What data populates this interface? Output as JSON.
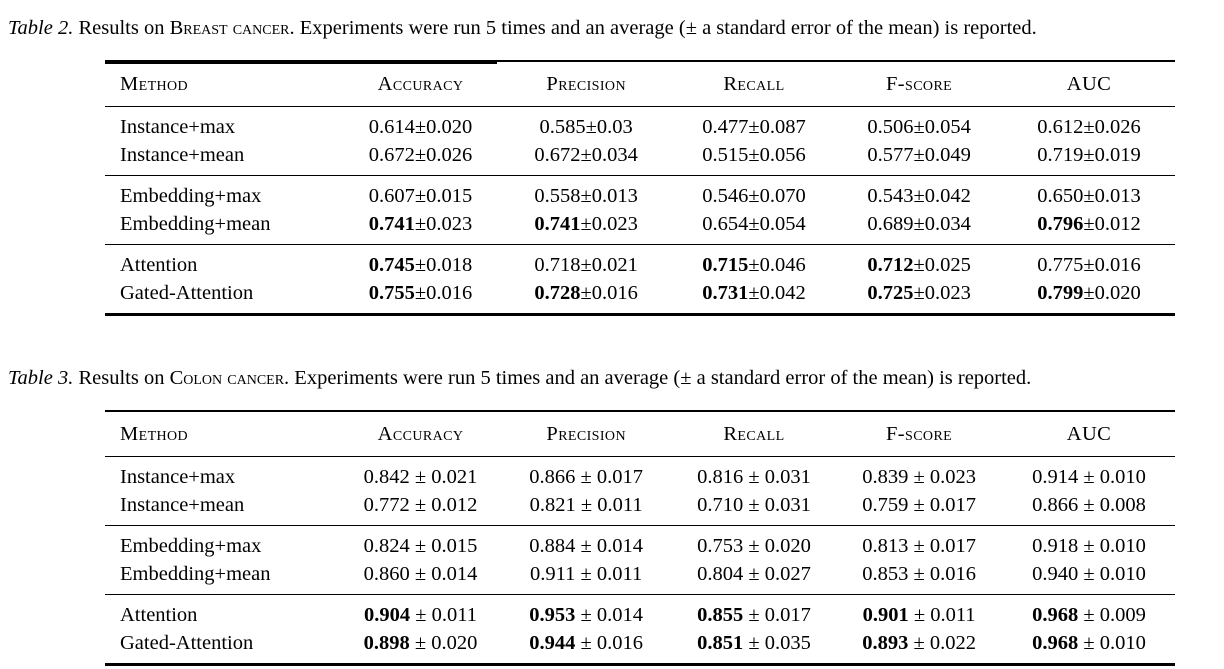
{
  "page": {
    "background": "#ffffff",
    "text_color": "#000000"
  },
  "tables": [
    {
      "id": "breast-cancer-results",
      "caption": {
        "label": "Table 2.",
        "before": " Results on ",
        "dataset": "Breast cancer",
        "after": ". Experiments were run 5 times and an average (± a standard error of the mean) is reported."
      },
      "columns": [
        "Method",
        "Accuracy",
        "Precision",
        "Recall",
        "F-score",
        "AUC"
      ],
      "pm": "±",
      "pm_spaced": false,
      "groups": [
        {
          "rows": [
            {
              "method": "Instance+max",
              "cells": [
                [
                  "0.614",
                  "0.020",
                  0
                ],
                [
                  "0.585",
                  "0.03",
                  0
                ],
                [
                  "0.477",
                  "0.087",
                  0
                ],
                [
                  "0.506",
                  "0.054",
                  0
                ],
                [
                  "0.612",
                  "0.026",
                  0
                ]
              ]
            },
            {
              "method": "Instance+mean",
              "cells": [
                [
                  "0.672",
                  "0.026",
                  0
                ],
                [
                  "0.672",
                  "0.034",
                  0
                ],
                [
                  "0.515",
                  "0.056",
                  0
                ],
                [
                  "0.577",
                  "0.049",
                  0
                ],
                [
                  "0.719",
                  "0.019",
                  0
                ]
              ]
            }
          ]
        },
        {
          "rows": [
            {
              "method": "Embedding+max",
              "cells": [
                [
                  "0.607",
                  "0.015",
                  0
                ],
                [
                  "0.558",
                  "0.013",
                  0
                ],
                [
                  "0.546",
                  "0.070",
                  0
                ],
                [
                  "0.543",
                  "0.042",
                  0
                ],
                [
                  "0.650",
                  "0.013",
                  0
                ]
              ]
            },
            {
              "method": "Embedding+mean",
              "cells": [
                [
                  "0.741",
                  "0.023",
                  1
                ],
                [
                  "0.741",
                  "0.023",
                  1
                ],
                [
                  "0.654",
                  "0.054",
                  0
                ],
                [
                  "0.689",
                  "0.034",
                  0
                ],
                [
                  "0.796",
                  "0.012",
                  1
                ]
              ]
            }
          ]
        },
        {
          "rows": [
            {
              "method": "Attention",
              "cells": [
                [
                  "0.745",
                  "0.018",
                  1
                ],
                [
                  "0.718",
                  "0.021",
                  0
                ],
                [
                  "0.715",
                  "0.046",
                  1
                ],
                [
                  "0.712",
                  "0.025",
                  1
                ],
                [
                  "0.775",
                  "0.016",
                  0
                ]
              ]
            },
            {
              "method": "Gated-Attention",
              "cells": [
                [
                  "0.755",
                  "0.016",
                  1
                ],
                [
                  "0.728",
                  "0.016",
                  1
                ],
                [
                  "0.731",
                  "0.042",
                  1
                ],
                [
                  "0.725",
                  "0.023",
                  1
                ],
                [
                  "0.799",
                  "0.020",
                  1
                ]
              ]
            }
          ]
        }
      ]
    },
    {
      "id": "colon-cancer-results",
      "caption": {
        "label": "Table 3.",
        "before": " Results on ",
        "dataset": "Colon cancer",
        "after": ". Experiments were run 5 times and an average (± a standard error of the mean) is reported."
      },
      "columns": [
        "Method",
        "Accuracy",
        "Precision",
        "Recall",
        "F-score",
        "AUC"
      ],
      "pm": "±",
      "pm_spaced": true,
      "groups": [
        {
          "rows": [
            {
              "method": "Instance+max",
              "cells": [
                [
                  "0.842",
                  "0.021",
                  0
                ],
                [
                  "0.866",
                  "0.017",
                  0
                ],
                [
                  "0.816",
                  "0.031",
                  0
                ],
                [
                  "0.839",
                  "0.023",
                  0
                ],
                [
                  "0.914",
                  "0.010",
                  0
                ]
              ]
            },
            {
              "method": "Instance+mean",
              "cells": [
                [
                  "0.772",
                  "0.012",
                  0
                ],
                [
                  "0.821",
                  "0.011",
                  0
                ],
                [
                  "0.710",
                  "0.031",
                  0
                ],
                [
                  "0.759",
                  "0.017",
                  0
                ],
                [
                  "0.866",
                  "0.008",
                  0
                ]
              ]
            }
          ]
        },
        {
          "rows": [
            {
              "method": "Embedding+max",
              "cells": [
                [
                  "0.824",
                  "0.015",
                  0
                ],
                [
                  "0.884",
                  "0.014",
                  0
                ],
                [
                  "0.753",
                  "0.020",
                  0
                ],
                [
                  "0.813",
                  "0.017",
                  0
                ],
                [
                  "0.918",
                  "0.010",
                  0
                ]
              ]
            },
            {
              "method": "Embedding+mean",
              "cells": [
                [
                  "0.860",
                  "0.014",
                  0
                ],
                [
                  "0.911",
                  "0.011",
                  0
                ],
                [
                  "0.804",
                  "0.027",
                  0
                ],
                [
                  "0.853",
                  "0.016",
                  0
                ],
                [
                  "0.940",
                  "0.010",
                  0
                ]
              ]
            }
          ]
        },
        {
          "rows": [
            {
              "method": "Attention",
              "cells": [
                [
                  "0.904",
                  "0.011",
                  1
                ],
                [
                  "0.953",
                  "0.014",
                  1
                ],
                [
                  "0.855",
                  "0.017",
                  1
                ],
                [
                  "0.901",
                  "0.011",
                  1
                ],
                [
                  "0.968",
                  "0.009",
                  1
                ]
              ]
            },
            {
              "method": "Gated-Attention",
              "cells": [
                [
                  "0.898",
                  "0.020",
                  1
                ],
                [
                  "0.944",
                  "0.016",
                  1
                ],
                [
                  "0.851",
                  "0.035",
                  1
                ],
                [
                  "0.893",
                  "0.022",
                  1
                ],
                [
                  "0.968",
                  "0.010",
                  1
                ]
              ]
            }
          ]
        }
      ]
    }
  ]
}
